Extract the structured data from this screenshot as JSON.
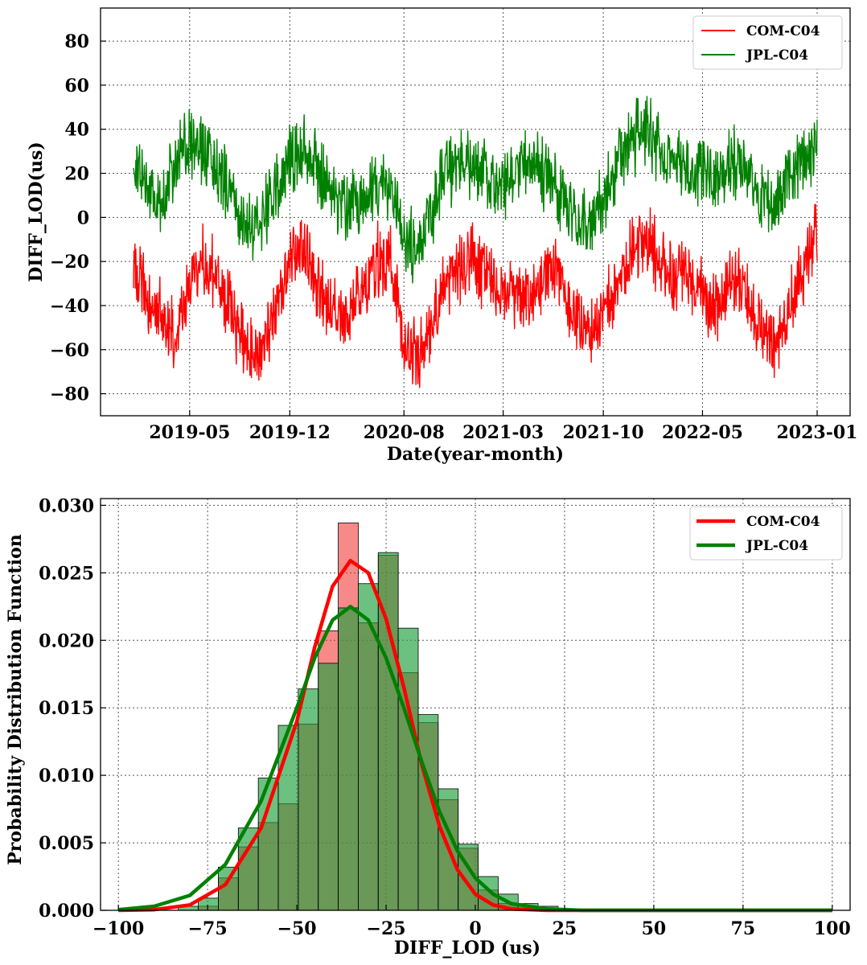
{
  "chart_data": [
    {
      "type": "line",
      "title": "",
      "xlabel": "Date(year-month)",
      "ylabel": "DIFF_LOD(us)",
      "x_ticks": [
        "2019-05",
        "2019-12",
        "2020-08",
        "2021-03",
        "2021-10",
        "2022-05",
        "2023-01"
      ],
      "x_range": [
        "2019-01-01",
        "2023-01-01"
      ],
      "ylim": [
        -90,
        95
      ],
      "y_ticks": [
        -80,
        -60,
        -40,
        -20,
        0,
        20,
        40,
        60,
        80
      ],
      "grid": true,
      "legend_position": "top-right",
      "series": [
        {
          "name": "COM-C04",
          "color": "#ff0000",
          "x": [
            "2019-01",
            "2019-02",
            "2019-03",
            "2019-04",
            "2019-05",
            "2019-06",
            "2019-07",
            "2019-08",
            "2019-09",
            "2019-10",
            "2019-11",
            "2019-12",
            "2020-01",
            "2020-02",
            "2020-03",
            "2020-04",
            "2020-05",
            "2020-06",
            "2020-07",
            "2020-08",
            "2020-09",
            "2020-10",
            "2020-11",
            "2020-12",
            "2021-01",
            "2021-02",
            "2021-03",
            "2021-04",
            "2021-05",
            "2021-06",
            "2021-07",
            "2021-08",
            "2021-09",
            "2021-10",
            "2021-11",
            "2021-12",
            "2022-01",
            "2022-02",
            "2022-03",
            "2022-04",
            "2022-05",
            "2022-06",
            "2022-07",
            "2022-08",
            "2022-09",
            "2022-10",
            "2022-11",
            "2022-12",
            "2023-01"
          ],
          "y": [
            -20,
            -38,
            -45,
            -55,
            -32,
            -20,
            -28,
            -45,
            -60,
            -62,
            -40,
            -20,
            -15,
            -35,
            -42,
            -45,
            -35,
            -20,
            -18,
            -55,
            -65,
            -48,
            -30,
            -22,
            -20,
            -30,
            -35,
            -32,
            -38,
            -25,
            -25,
            -48,
            -55,
            -45,
            -30,
            -15,
            -10,
            -20,
            -28,
            -25,
            -35,
            -40,
            -25,
            -35,
            -50,
            -60,
            -42,
            -25,
            -5
          ]
        },
        {
          "name": "JPL-C04",
          "color": "#008000",
          "x": [
            "2019-01",
            "2019-02",
            "2019-03",
            "2019-04",
            "2019-05",
            "2019-06",
            "2019-07",
            "2019-08",
            "2019-09",
            "2019-10",
            "2019-11",
            "2019-12",
            "2020-01",
            "2020-02",
            "2020-03",
            "2020-04",
            "2020-05",
            "2020-06",
            "2020-07",
            "2020-08",
            "2020-09",
            "2020-10",
            "2020-11",
            "2020-12",
            "2021-01",
            "2021-02",
            "2021-03",
            "2021-04",
            "2021-05",
            "2021-06",
            "2021-07",
            "2021-08",
            "2021-09",
            "2021-10",
            "2021-11",
            "2021-12",
            "2022-01",
            "2022-02",
            "2022-03",
            "2022-04",
            "2022-05",
            "2022-06",
            "2022-07",
            "2022-08",
            "2022-09",
            "2022-10",
            "2022-11",
            "2022-12",
            "2023-01"
          ],
          "y": [
            25,
            15,
            5,
            25,
            35,
            30,
            20,
            10,
            -5,
            0,
            10,
            25,
            30,
            20,
            10,
            5,
            5,
            15,
            15,
            -10,
            -15,
            5,
            20,
            25,
            25,
            15,
            15,
            20,
            25,
            20,
            10,
            0,
            -5,
            10,
            25,
            35,
            40,
            30,
            25,
            25,
            20,
            15,
            25,
            25,
            10,
            5,
            15,
            25,
            35
          ]
        }
      ]
    },
    {
      "type": "bar",
      "title": "",
      "xlabel": "DIFF_LOD (us)",
      "ylabel": "Probability Distribution Function",
      "xlim": [
        -105,
        105
      ],
      "ylim": [
        0,
        0.0305
      ],
      "x_ticks": [
        -100,
        -75,
        -50,
        -25,
        0,
        25,
        50,
        75,
        100
      ],
      "y_ticks": [
        "0.000",
        "0.005",
        "0.010",
        "0.015",
        "0.020",
        "0.025",
        "0.030"
      ],
      "grid": true,
      "legend_position": "top-right",
      "bin_width": 5.6,
      "bin_edges": [
        -100,
        -94.4,
        -88.8,
        -83.2,
        -77.6,
        -72,
        -66.4,
        -60.8,
        -55.2,
        -49.6,
        -44,
        -38.4,
        -32.8,
        -27.2,
        -21.6,
        -16,
        -10.4,
        -4.8,
        0.8,
        6.4,
        12,
        17.6,
        23.2,
        28.8,
        34.4,
        40,
        45.6,
        51.2,
        56.8,
        62.4,
        68,
        73.6,
        79.2,
        84.8,
        90.4,
        96
      ],
      "series": [
        {
          "name": "COM-C04",
          "color": "#ff0000",
          "hist_values": [
            0,
            0,
            0,
            0,
            0.0003,
            0.0024,
            0.0047,
            0.0065,
            0.0079,
            0.0138,
            0.0207,
            0.0287,
            0.0213,
            0.0263,
            0.0176,
            0.0139,
            0.0082,
            0.0046,
            0.0015,
            0.0005,
            0.0001,
            0,
            0,
            0,
            0,
            0,
            0,
            0,
            0,
            0,
            0,
            0,
            0,
            0,
            0
          ],
          "curve_x": [
            -100,
            -90,
            -80,
            -70,
            -60,
            -50,
            -45,
            -40,
            -35,
            -30,
            -25,
            -20,
            -15,
            -10,
            -5,
            0,
            5,
            10,
            20,
            30,
            40,
            50,
            60,
            70,
            80,
            90,
            100
          ],
          "curve_y": [
            0.0,
            5e-05,
            0.0004,
            0.0019,
            0.0061,
            0.014,
            0.0195,
            0.024,
            0.0259,
            0.025,
            0.0216,
            0.0165,
            0.0108,
            0.0062,
            0.003,
            0.0012,
            0.0004,
            0.0001,
            0.0,
            0.0,
            0.0,
            0.0,
            0.0,
            0.0,
            0.0,
            0.0,
            0.0
          ]
        },
        {
          "name": "JPL-C04",
          "color": "#008000",
          "hist_values": [
            0,
            0,
            0,
            0.0003,
            0.0009,
            0.0032,
            0.0061,
            0.0098,
            0.0137,
            0.0164,
            0.0183,
            0.0224,
            0.0242,
            0.0265,
            0.0209,
            0.0145,
            0.009,
            0.0049,
            0.0025,
            0.0012,
            0.0005,
            0.0003,
            0.0001,
            0,
            0,
            0,
            0,
            0,
            0,
            0,
            0,
            0,
            0,
            0,
            0
          ],
          "curve_x": [
            -100,
            -90,
            -80,
            -70,
            -60,
            -50,
            -45,
            -40,
            -35,
            -30,
            -25,
            -20,
            -15,
            -10,
            -5,
            0,
            5,
            10,
            20,
            30,
            40,
            50,
            60,
            70,
            80,
            90,
            100
          ],
          "curve_y": [
            5e-05,
            0.0003,
            0.0011,
            0.0034,
            0.0081,
            0.015,
            0.0187,
            0.0215,
            0.0225,
            0.0215,
            0.0187,
            0.015,
            0.011,
            0.0073,
            0.0044,
            0.0024,
            0.0012,
            0.0005,
            0.0001,
            0.0,
            0.0,
            0.0,
            0.0,
            0.0,
            0.0,
            0.0,
            0.0
          ]
        }
      ]
    }
  ]
}
